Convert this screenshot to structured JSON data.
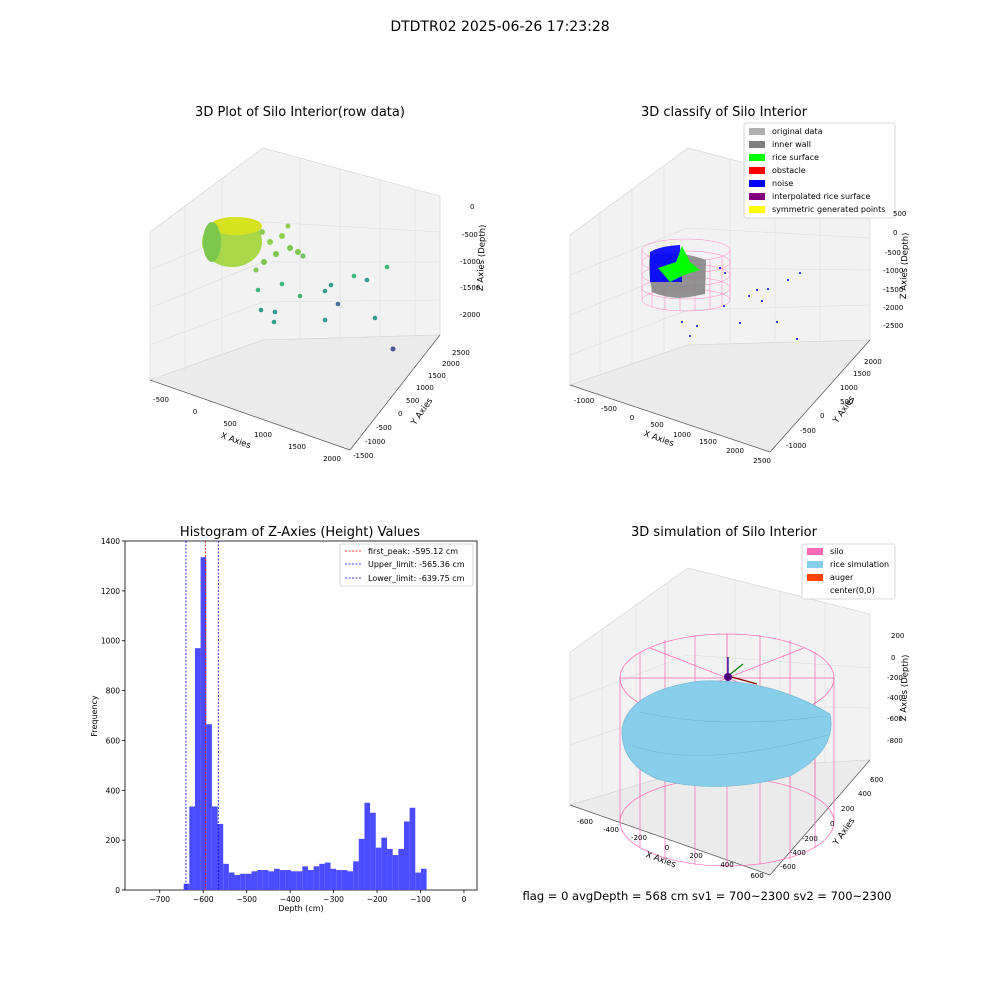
{
  "suptitle": "DTDTR02 2025-06-26 17:23:28",
  "status_line": "flag = 0     avgDepth = 568 cm  sv1 = 700~2300  sv2 = 700~2300",
  "colors": {
    "hist_bar": "#4b4bff",
    "peak_line": "#ff0000",
    "limit_line": "#0000ff",
    "silo": "#ff69b4",
    "rice": "#87ceeb",
    "auger": "#ff4500",
    "original": "#b0b0b0",
    "inner_wall": "#808080",
    "rice_surface": "#00ff00",
    "obstacle": "#ff0000",
    "noise": "#0000ff",
    "interpolated": "#800080",
    "symmetric": "#ffff00"
  },
  "chart_data": [
    {
      "type": "scatter",
      "title": "3D Plot of Silo Interior(row data)",
      "xlabel": "X Axies",
      "ylabel": "Y Axies",
      "zlabel": "Z Axies (Depth)",
      "x_ticks": [
        "-500",
        "0",
        "500",
        "1000",
        "1500",
        "2000"
      ],
      "y_ticks": [
        "-1500",
        "-1000",
        "-500",
        "0",
        "500",
        "1000",
        "1500",
        "2000",
        "2500"
      ],
      "z_ticks": [
        "0",
        "-500",
        "-1000",
        "-1500",
        "-2000"
      ]
    },
    {
      "type": "scatter",
      "title": "3D classify of Silo Interior",
      "xlabel": "X Axies",
      "ylabel": "Y Axies",
      "zlabel": "Z Axies (Depth)",
      "x_ticks": [
        "-1000",
        "-500",
        "0",
        "500",
        "1000",
        "1500",
        "2000",
        "2500"
      ],
      "y_ticks": [
        "-1000",
        "-500",
        "0",
        "500",
        "1000",
        "1500",
        "2000"
      ],
      "z_ticks": [
        "500",
        "0",
        "-500",
        "-1000",
        "-1500",
        "-2000",
        "-2500"
      ],
      "legend": [
        "original data",
        "inner wall",
        "rice surface",
        "obstacle",
        "noise",
        "interpolated rice surface",
        "symmetric generated points"
      ]
    },
    {
      "type": "bar",
      "title": "Histogram of Z-Axies (Height) Values",
      "xlabel": "Depth (cm)",
      "ylabel": "Frequency",
      "xlim": [
        -780,
        30
      ],
      "ylim": [
        0,
        1400
      ],
      "x_ticks": [
        -700,
        -600,
        -500,
        -400,
        -300,
        -200,
        -100,
        0
      ],
      "y_ticks": [
        0,
        200,
        400,
        600,
        800,
        1000,
        1200,
        1400
      ],
      "bin_width": 13,
      "bin_starts": [
        -645,
        -632,
        -619,
        -606,
        -593,
        -580,
        -567,
        -554,
        -541,
        -528,
        -515,
        -502,
        -489,
        -476,
        -463,
        -450,
        -437,
        -424,
        -411,
        -398,
        -385,
        -372,
        -359,
        -346,
        -333,
        -320,
        -307,
        -294,
        -281,
        -268,
        -255,
        -242,
        -229,
        -216,
        -203,
        -190,
        -177,
        -164,
        -151,
        -138,
        -125,
        -112,
        -99,
        -86,
        -73,
        -60,
        -47,
        -34,
        -21,
        -8
      ],
      "values": [
        25,
        335,
        970,
        1335,
        665,
        335,
        265,
        105,
        70,
        60,
        65,
        65,
        75,
        80,
        80,
        75,
        85,
        80,
        80,
        75,
        75,
        95,
        80,
        95,
        105,
        110,
        85,
        80,
        80,
        75,
        115,
        205,
        350,
        310,
        170,
        210,
        165,
        140,
        165,
        275,
        330,
        70,
        85,
        0,
        0,
        0,
        0,
        0,
        0,
        0
      ],
      "vlines": [
        {
          "label": "first_peak: -595.12 cm",
          "x": -595.12,
          "color": "#ff0000"
        },
        {
          "label": "Upper_limit: -565.36 cm",
          "x": -565.36,
          "color": "#0000ff"
        },
        {
          "label": "Lower_limit: -639.75 cm",
          "x": -639.75,
          "color": "#0000ff"
        }
      ]
    },
    {
      "type": "scatter",
      "title": "3D simulation of Silo Interior",
      "xlabel": "X Axies",
      "ylabel": "Y Axies",
      "zlabel": "Z Axies (Depth)",
      "x_ticks": [
        "-600",
        "-400",
        "-200",
        "0",
        "200",
        "400",
        "600"
      ],
      "y_ticks": [
        "-600",
        "-400",
        "-200",
        "0",
        "200",
        "400",
        "600"
      ],
      "z_ticks": [
        "200",
        "0",
        "-200",
        "-400",
        "-600",
        "-800"
      ],
      "legend": [
        "silo",
        "rice simulation",
        "auger",
        "center(0,0)"
      ]
    }
  ]
}
